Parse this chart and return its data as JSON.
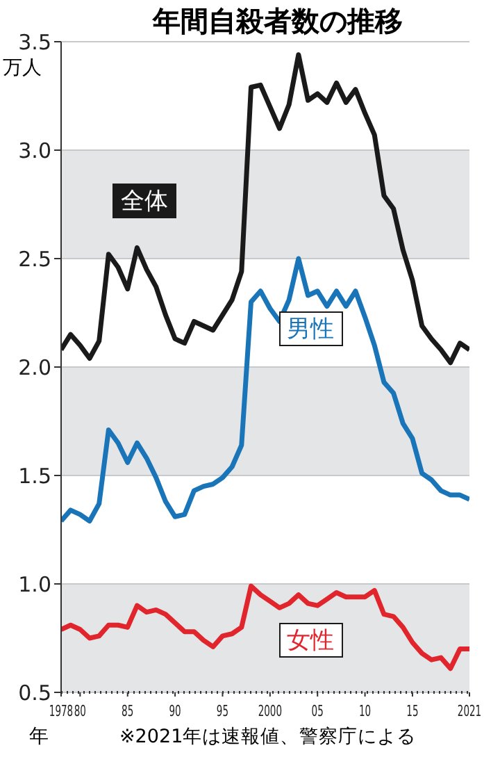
{
  "chart_data": {
    "type": "line",
    "title": "年間自殺者数の推移",
    "ylabel": "万人",
    "xlabel": "年",
    "annotations": [
      "※2021年は速報値、警察庁による"
    ],
    "x": [
      1978,
      1979,
      1980,
      1981,
      1982,
      1983,
      1984,
      1985,
      1986,
      1987,
      1988,
      1989,
      1990,
      1991,
      1992,
      1993,
      1994,
      1995,
      1996,
      1997,
      1998,
      1999,
      2000,
      2001,
      2002,
      2003,
      2004,
      2005,
      2006,
      2007,
      2008,
      2009,
      2010,
      2011,
      2012,
      2013,
      2014,
      2015,
      2016,
      2017,
      2018,
      2019,
      2020,
      2021
    ],
    "series": [
      {
        "name": "全体",
        "color": "#1a1a1a",
        "values": [
          2.08,
          2.15,
          2.1,
          2.04,
          2.12,
          2.52,
          2.46,
          2.36,
          2.55,
          2.45,
          2.37,
          2.24,
          2.13,
          2.11,
          2.21,
          2.19,
          2.17,
          2.24,
          2.31,
          2.44,
          3.29,
          3.3,
          3.2,
          3.1,
          3.21,
          3.44,
          3.23,
          3.26,
          3.22,
          3.31,
          3.22,
          3.28,
          3.17,
          3.07,
          2.79,
          2.73,
          2.54,
          2.4,
          2.19,
          2.13,
          2.08,
          2.02,
          2.11,
          2.08
        ]
      },
      {
        "name": "男性",
        "color": "#1a75b8",
        "values": [
          1.29,
          1.34,
          1.32,
          1.29,
          1.37,
          1.71,
          1.65,
          1.56,
          1.65,
          1.58,
          1.49,
          1.38,
          1.31,
          1.32,
          1.43,
          1.45,
          1.46,
          1.49,
          1.54,
          1.64,
          2.3,
          2.35,
          2.27,
          2.21,
          2.31,
          2.5,
          2.33,
          2.35,
          2.28,
          2.35,
          2.28,
          2.35,
          2.23,
          2.1,
          1.93,
          1.88,
          1.74,
          1.67,
          1.51,
          1.48,
          1.43,
          1.41,
          1.41,
          1.39
        ]
      },
      {
        "name": "女性",
        "color": "#e0252d",
        "values": [
          0.79,
          0.81,
          0.79,
          0.75,
          0.76,
          0.81,
          0.81,
          0.8,
          0.9,
          0.87,
          0.88,
          0.86,
          0.82,
          0.78,
          0.78,
          0.74,
          0.71,
          0.76,
          0.77,
          0.8,
          0.99,
          0.95,
          0.92,
          0.89,
          0.91,
          0.95,
          0.91,
          0.9,
          0.93,
          0.96,
          0.94,
          0.94,
          0.94,
          0.97,
          0.86,
          0.85,
          0.8,
          0.73,
          0.68,
          0.65,
          0.66,
          0.61,
          0.7,
          0.7
        ]
      }
    ],
    "xlim": [
      1978,
      2021
    ],
    "xticks": [
      {
        "value": 1978,
        "label": "1978"
      },
      {
        "value": 1980,
        "label": "80"
      },
      {
        "value": 1985,
        "label": "85"
      },
      {
        "value": 1990,
        "label": "90"
      },
      {
        "value": 1995,
        "label": "95"
      },
      2000,
      {
        "value": 2005,
        "label": "05"
      },
      {
        "value": 2010,
        "label": "10"
      },
      {
        "value": 2015,
        "label": "15"
      },
      2021
    ],
    "ylim": [
      0.5,
      3.5
    ],
    "yticks": [
      {
        "value": 0.5,
        "label": "0.5"
      },
      {
        "value": 1,
        "label": "1.0"
      },
      {
        "value": 1.5,
        "label": "1.5"
      },
      {
        "value": 2,
        "label": "2.0"
      },
      {
        "value": 2.5,
        "label": "2.5"
      },
      {
        "value": 3,
        "label": "3.0"
      },
      {
        "value": 3.5,
        "label": "3.5"
      }
    ],
    "grid": "y",
    "legend": false,
    "marker": "none",
    "line_style": "solid"
  }
}
